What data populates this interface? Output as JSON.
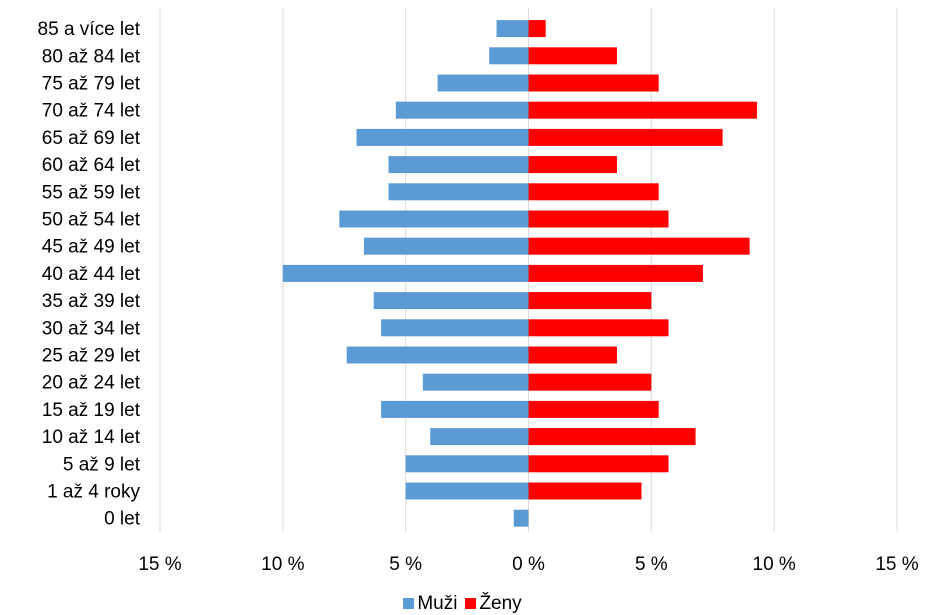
{
  "chart_data": {
    "type": "bar",
    "orientation": "horizontal",
    "title": "",
    "xlabel": "",
    "ylabel": "",
    "categories": [
      "0 let",
      "1 až 4 roky",
      "5 až 9 let",
      "10 až 14 let",
      "15 až 19 let",
      "20 až 24 let",
      "25 až 29 let",
      "30 až 34 let",
      "35 až 39 let",
      "40 až 44 let",
      "45 až 49 let",
      "50 až 54 let",
      "55 až 59 let",
      "60 až 64 let",
      "65 až 69 let",
      "70 až 74 let",
      "75 až 79 let",
      "80 až 84 let",
      "85 a více let"
    ],
    "series": [
      {
        "name": "Muži",
        "color": "#5b9bd5",
        "values": [
          -0.6,
          -5.0,
          -5.0,
          -4.0,
          -6.0,
          -4.3,
          -7.4,
          -6.0,
          -6.3,
          -10.0,
          -6.7,
          -7.7,
          -5.7,
          -5.7,
          -7.0,
          -5.4,
          -3.7,
          -1.6,
          -1.3
        ]
      },
      {
        "name": "Ženy",
        "color": "#ff0000",
        "values": [
          0.0,
          4.6,
          5.7,
          6.8,
          5.3,
          5.0,
          3.6,
          5.7,
          5.0,
          7.1,
          9.0,
          5.7,
          5.3,
          3.6,
          7.9,
          9.3,
          5.3,
          3.6,
          0.7
        ]
      }
    ],
    "xlim": [
      -15,
      15
    ],
    "xticks": [
      -15,
      -10,
      -5,
      0,
      5,
      10,
      15
    ],
    "xtick_labels": [
      "15 %",
      "10 %",
      "5 %",
      "0 %",
      "5 %",
      "10 %",
      "15 %"
    ],
    "grid": "vertical",
    "legend_position": "bottom"
  }
}
